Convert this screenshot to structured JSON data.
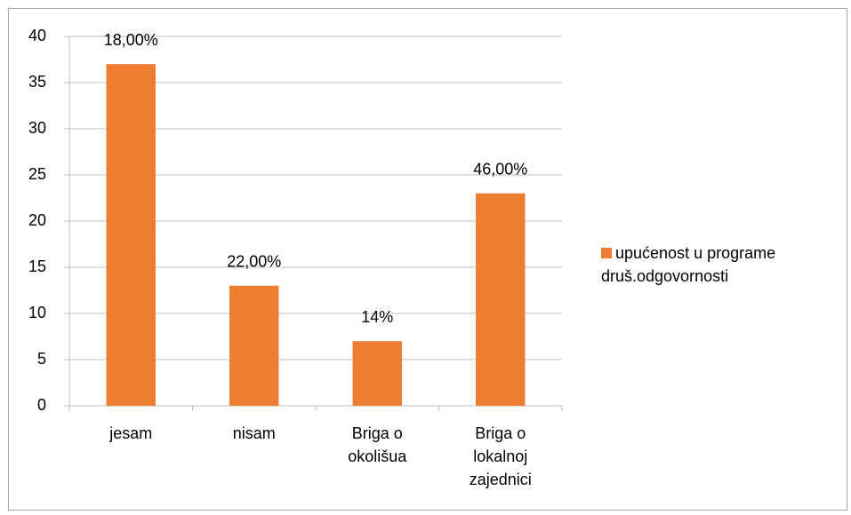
{
  "chart_data": {
    "type": "bar",
    "categories": [
      "jesam",
      "nisam",
      "Briga o okolišua",
      "Briga o lokalnoj zajednici"
    ],
    "series": [
      {
        "name": "upućenost u programe druš.odgovornosti",
        "color": "#ed7d31",
        "values": [
          37,
          13,
          7,
          23
        ]
      }
    ],
    "annotations": [
      "18,00%",
      "22,00%",
      "14%",
      "46,00%"
    ],
    "ylim": [
      0,
      40
    ],
    "yticks": [
      0,
      5,
      10,
      15,
      20,
      25,
      30,
      35,
      40
    ],
    "grid": true,
    "legend": "right"
  }
}
